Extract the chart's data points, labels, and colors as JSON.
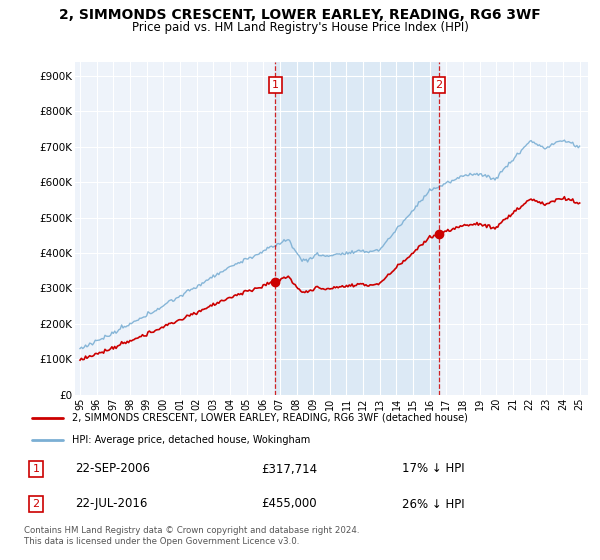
{
  "title": "2, SIMMONDS CRESCENT, LOWER EARLEY, READING, RG6 3WF",
  "subtitle": "Price paid vs. HM Land Registry's House Price Index (HPI)",
  "ylabel_ticks": [
    "£0",
    "£100K",
    "£200K",
    "£300K",
    "£400K",
    "£500K",
    "£600K",
    "£700K",
    "£800K",
    "£900K"
  ],
  "ytick_values": [
    0,
    100000,
    200000,
    300000,
    400000,
    500000,
    600000,
    700000,
    800000,
    900000
  ],
  "ylim": [
    0,
    940000
  ],
  "xlim_start": 1994.7,
  "xlim_end": 2025.5,
  "hpi_color": "#7bafd4",
  "price_color": "#cc0000",
  "vline_color": "#cc0000",
  "shade_color": "#dce9f5",
  "transaction1_year": 2006.73,
  "transaction1_price": 317714,
  "transaction2_year": 2016.55,
  "transaction2_price": 455000,
  "legend_line1": "2, SIMMONDS CRESCENT, LOWER EARLEY, READING, RG6 3WF (detached house)",
  "legend_line2": "HPI: Average price, detached house, Wokingham",
  "annotation1_date": "22-SEP-2006",
  "annotation1_price": "£317,714",
  "annotation1_pct": "17% ↓ HPI",
  "annotation2_date": "22-JUL-2016",
  "annotation2_price": "£455,000",
  "annotation2_pct": "26% ↓ HPI",
  "footnote": "Contains HM Land Registry data © Crown copyright and database right 2024.\nThis data is licensed under the Open Government Licence v3.0.",
  "background_color": "#ffffff",
  "plot_bg_color": "#eef3fa"
}
